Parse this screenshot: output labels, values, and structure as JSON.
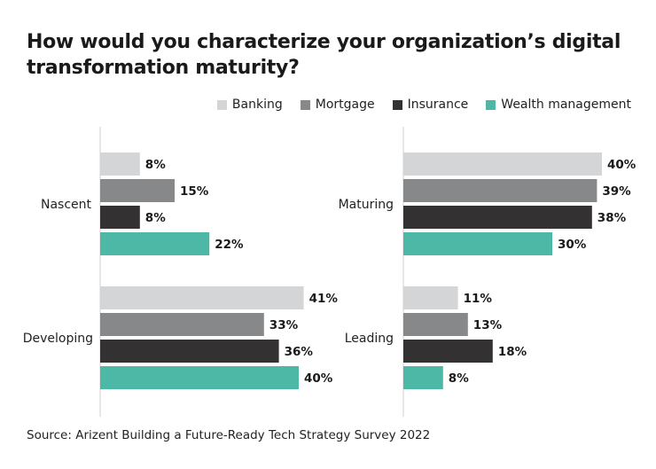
{
  "title": "How would you characterize your organization’s digital transformation maturity?",
  "source": "Source: Arizent Building a Future-Ready Tech Strategy Survey 2022",
  "legend": [
    {
      "name": "Banking",
      "color": "#d4d5d7"
    },
    {
      "name": "Mortgage",
      "color": "#87888a"
    },
    {
      "name": "Insurance",
      "color": "#333132"
    },
    {
      "name": "Wealth management",
      "color": "#4db8a6"
    }
  ],
  "chart_data": {
    "type": "bar",
    "orientation": "horizontal",
    "unit": "%",
    "series_names": [
      "Banking",
      "Mortgage",
      "Insurance",
      "Wealth management"
    ],
    "colors": [
      "#d4d5d7",
      "#87888a",
      "#333132",
      "#4db8a6"
    ],
    "xlim": [
      0,
      40
    ],
    "grid": false,
    "legend_position": "top-right",
    "panels": [
      {
        "category": "Nascent",
        "values": [
          8,
          15,
          8,
          22
        ],
        "labels": [
          "8%",
          "15%",
          "8%",
          "22%"
        ]
      },
      {
        "category": "Maturing",
        "values": [
          40,
          39,
          38,
          30
        ],
        "labels": [
          "40%",
          "39%",
          "38%",
          "30%"
        ]
      },
      {
        "category": "Developing",
        "values": [
          41,
          33,
          36,
          40
        ],
        "labels": [
          "41%",
          "33%",
          "36%",
          "40%"
        ]
      },
      {
        "category": "Leading",
        "values": [
          11,
          13,
          18,
          8
        ],
        "labels": [
          "11%",
          "13%",
          "18%",
          "8%"
        ]
      }
    ]
  }
}
